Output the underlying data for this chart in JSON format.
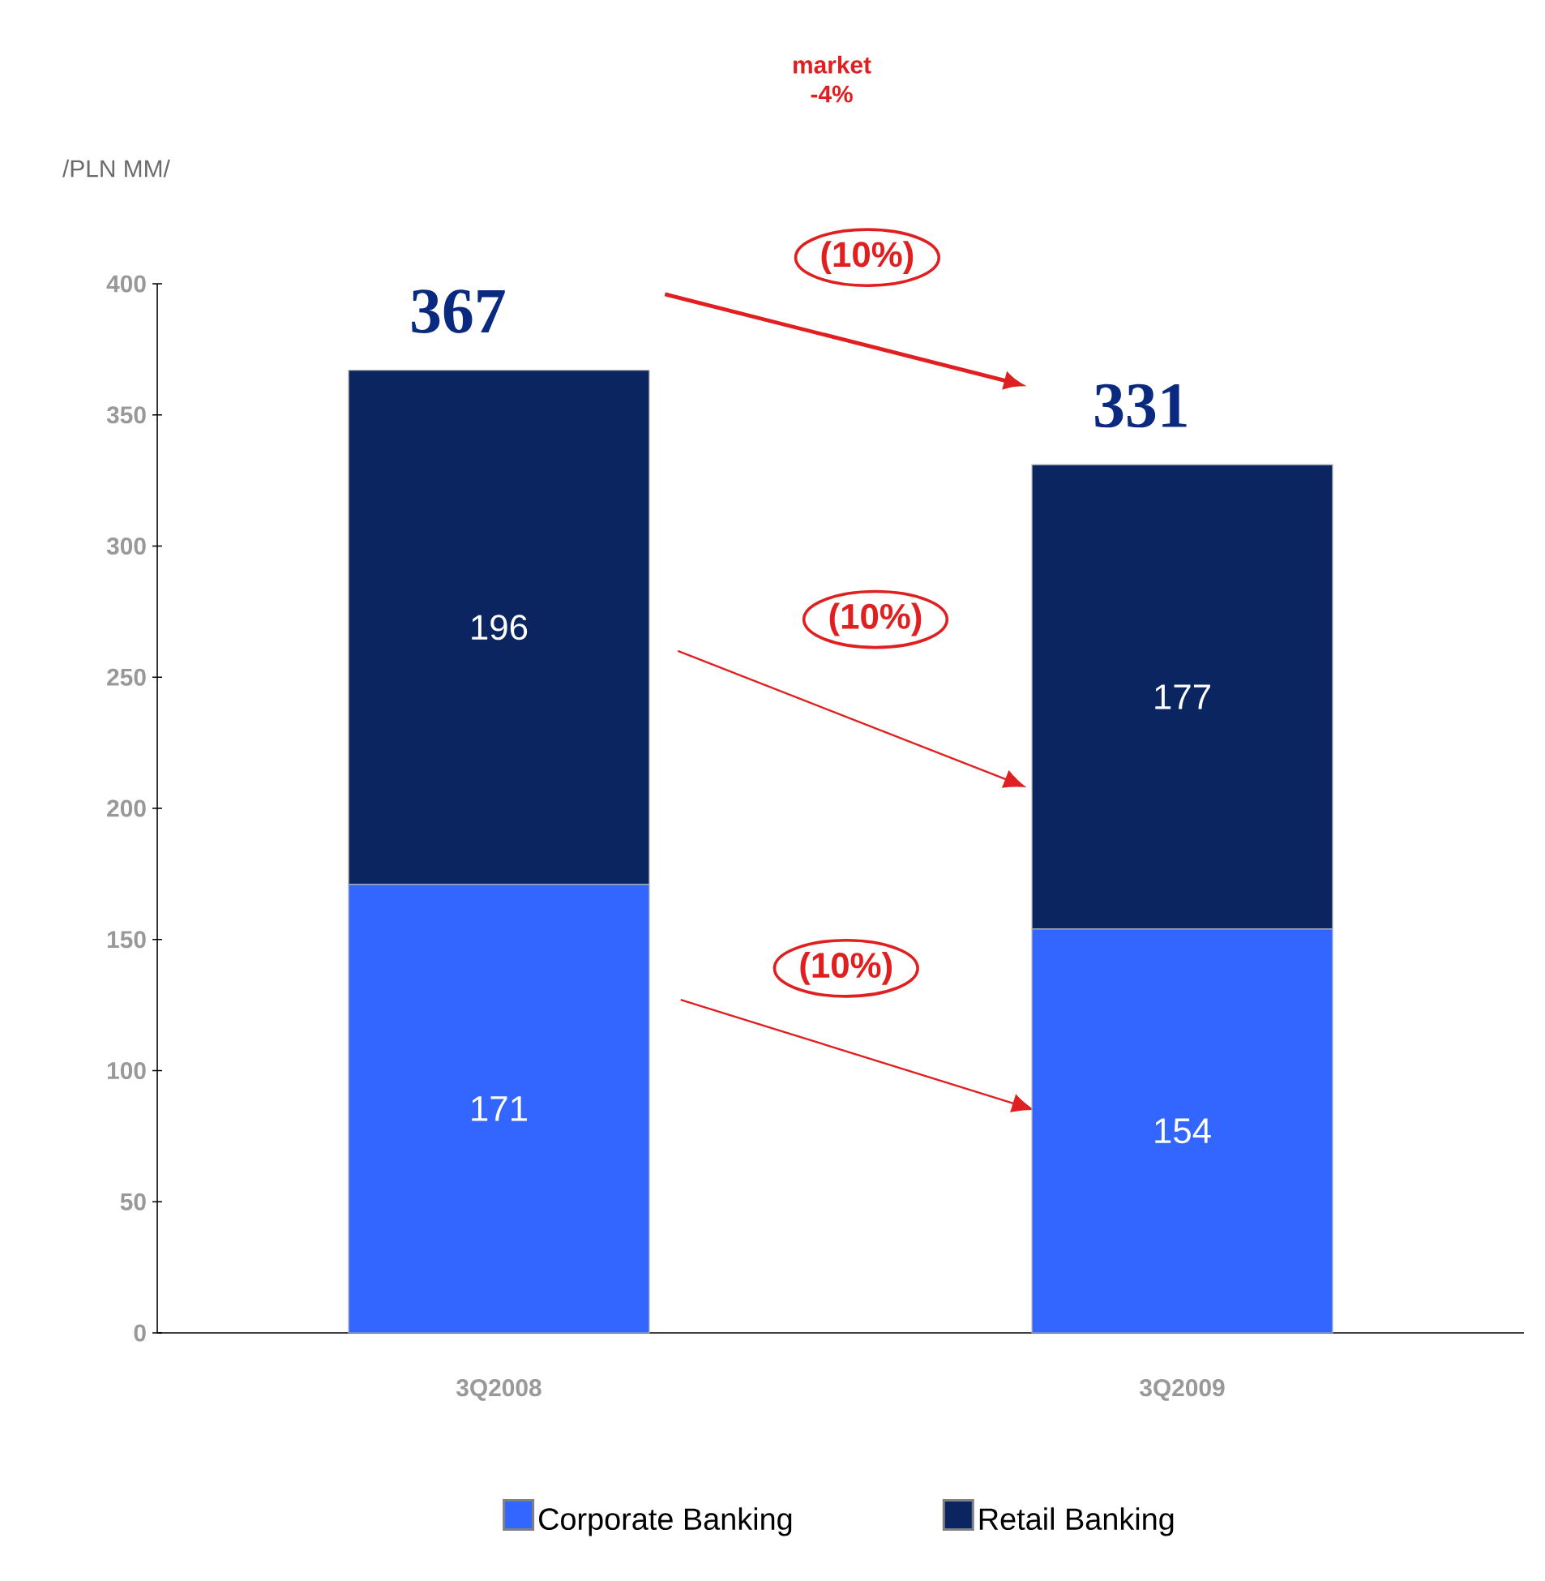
{
  "chart_data": {
    "type": "bar",
    "stacked": true,
    "ylabel": "/PLN MM/",
    "categories": [
      "3Q2008",
      "3Q2009"
    ],
    "series": [
      {
        "name": "Corporate Banking",
        "color": "#3366ff",
        "values": [
          171,
          154
        ]
      },
      {
        "name": "Retail Banking",
        "color": "#0a2560",
        "values": [
          196,
          177
        ]
      }
    ],
    "totals": [
      "367",
      "331"
    ],
    "data_labels": true,
    "ylim": [
      0,
      400
    ],
    "yticks": [
      0,
      50,
      100,
      150,
      200,
      250,
      300,
      350,
      400
    ],
    "legend": "bottom",
    "annotations": [
      "market -4%",
      "(10%)",
      "(10%)",
      "(10%)"
    ]
  }
}
